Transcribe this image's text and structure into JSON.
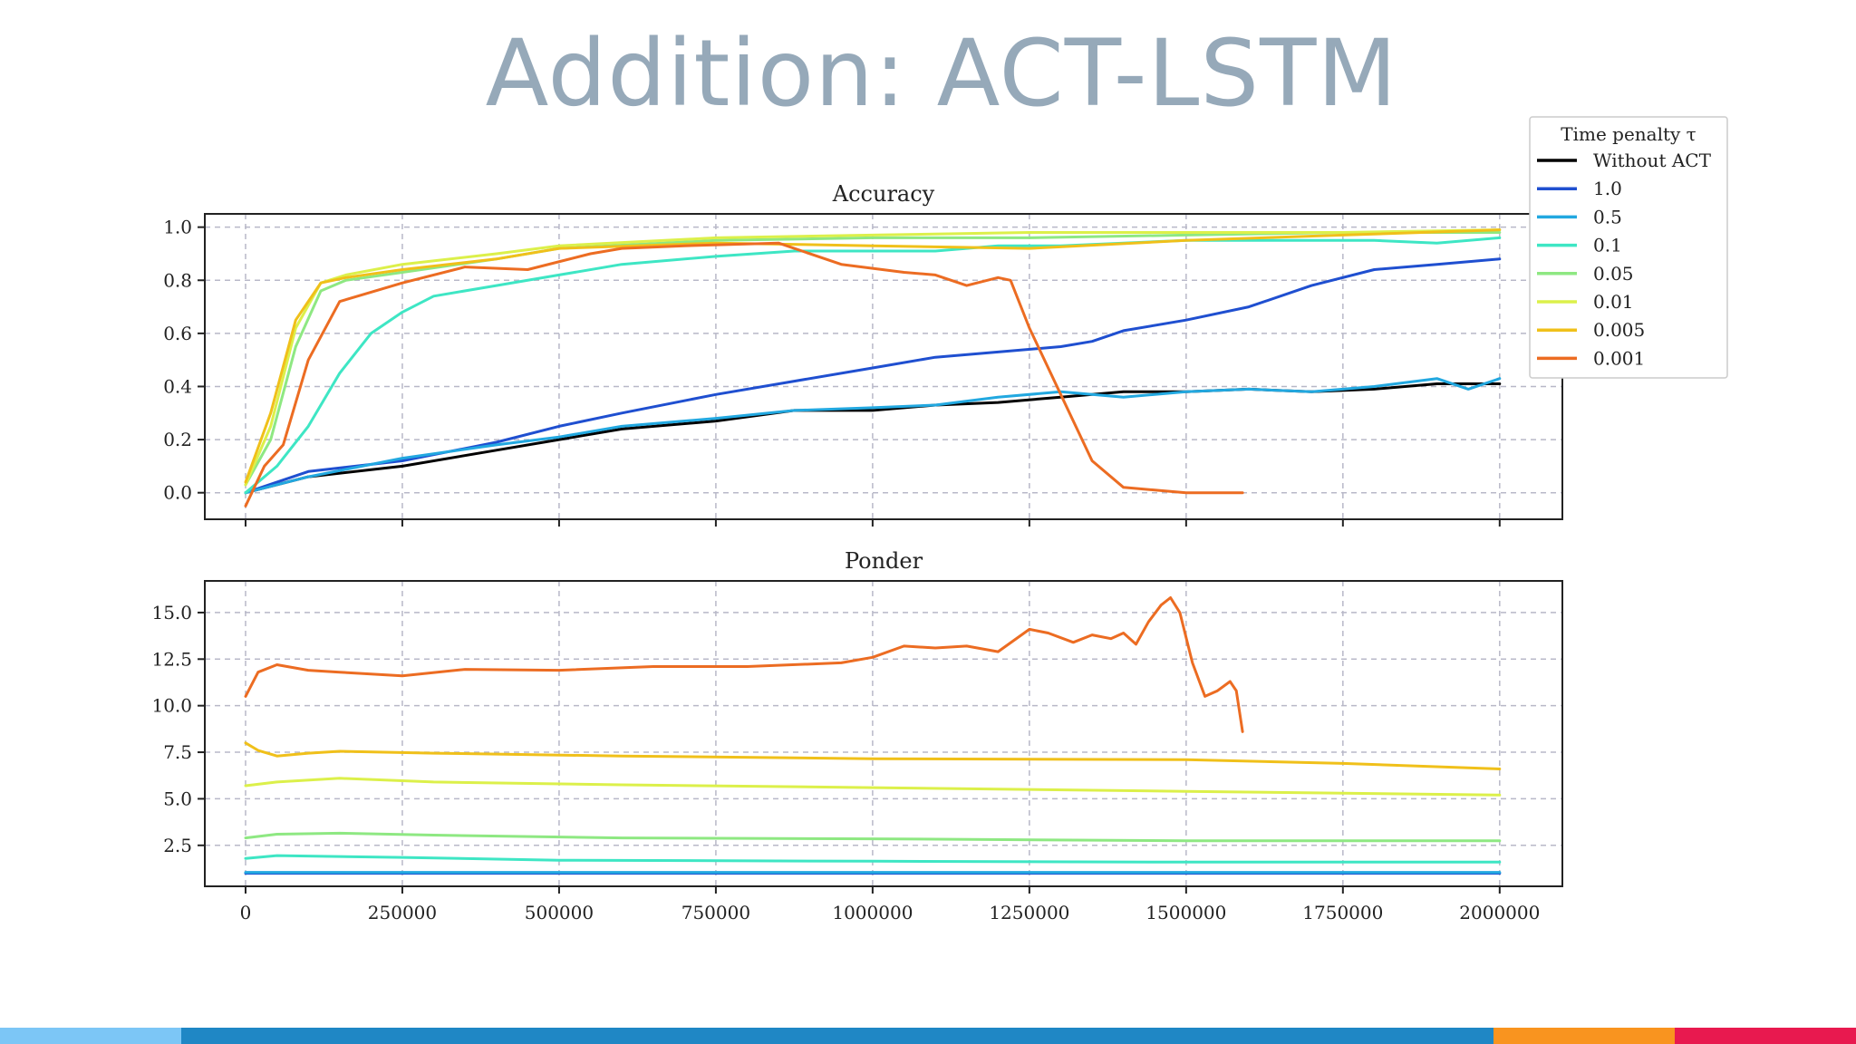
{
  "slide": {
    "title": "Addition: ACT-LSTM"
  },
  "legend": {
    "title": "Time penalty τ"
  },
  "colors": {
    "bar": [
      "#7cc6f6",
      "#1f87c5",
      "#f9941f",
      "#e8194f"
    ]
  },
  "chart_data": [
    {
      "type": "line",
      "title": "Accuracy",
      "xlabel": "",
      "ylabel": "",
      "xlim": [
        -65000,
        2100000
      ],
      "ylim": [
        -0.1,
        1.05
      ],
      "yticks": [
        0.0,
        0.2,
        0.4,
        0.6,
        0.8,
        1.0
      ],
      "ytick_labels": [
        "0.0",
        "0.2",
        "0.4",
        "0.6",
        "0.8",
        "1.0"
      ],
      "xticks": [
        0,
        250000,
        500000,
        750000,
        1000000,
        1250000,
        1500000,
        1750000,
        2000000
      ],
      "grid": true,
      "series": [
        {
          "name": "Without ACT",
          "color": "#000000",
          "x": [
            0,
            100000,
            250000,
            400000,
            500000,
            600000,
            750000,
            875000,
            1000000,
            1100000,
            1200000,
            1300000,
            1400000,
            1500000,
            1600000,
            1700000,
            1800000,
            1900000,
            2000000
          ],
          "y": [
            0.0,
            0.06,
            0.1,
            0.16,
            0.2,
            0.24,
            0.27,
            0.31,
            0.31,
            0.33,
            0.34,
            0.36,
            0.38,
            0.38,
            0.39,
            0.38,
            0.39,
            0.41,
            0.41
          ]
        },
        {
          "name": "1.0",
          "color": "#1f4fd0",
          "x": [
            0,
            100000,
            250000,
            400000,
            500000,
            600000,
            750000,
            875000,
            1000000,
            1100000,
            1200000,
            1300000,
            1350000,
            1400000,
            1500000,
            1600000,
            1700000,
            1800000,
            1900000,
            2000000
          ],
          "y": [
            0.0,
            0.08,
            0.12,
            0.19,
            0.25,
            0.3,
            0.37,
            0.42,
            0.47,
            0.51,
            0.53,
            0.55,
            0.57,
            0.61,
            0.65,
            0.7,
            0.78,
            0.84,
            0.86,
            0.88
          ]
        },
        {
          "name": "0.5",
          "color": "#22a8e0",
          "x": [
            0,
            100000,
            250000,
            400000,
            500000,
            600000,
            750000,
            875000,
            1000000,
            1100000,
            1200000,
            1300000,
            1400000,
            1500000,
            1600000,
            1700000,
            1800000,
            1900000,
            1950000,
            2000000
          ],
          "y": [
            0.0,
            0.06,
            0.13,
            0.18,
            0.21,
            0.25,
            0.28,
            0.31,
            0.32,
            0.33,
            0.36,
            0.38,
            0.36,
            0.38,
            0.39,
            0.38,
            0.4,
            0.43,
            0.39,
            0.43
          ]
        },
        {
          "name": "0.1",
          "color": "#3ee6c4",
          "x": [
            0,
            50000,
            100000,
            150000,
            200000,
            250000,
            300000,
            400000,
            500000,
            600000,
            750000,
            875000,
            1000000,
            1100000,
            1200000,
            1300000,
            1400000,
            1500000,
            1600000,
            1700000,
            1800000,
            1900000,
            2000000
          ],
          "y": [
            0.0,
            0.1,
            0.25,
            0.45,
            0.6,
            0.68,
            0.74,
            0.78,
            0.82,
            0.86,
            0.89,
            0.91,
            0.91,
            0.91,
            0.93,
            0.93,
            0.94,
            0.95,
            0.95,
            0.95,
            0.95,
            0.94,
            0.96
          ]
        },
        {
          "name": "0.05",
          "color": "#8ee882",
          "x": [
            0,
            40000,
            80000,
            120000,
            160000,
            250000,
            400000,
            500000,
            750000,
            1000000,
            1250000,
            1500000,
            1750000,
            2000000
          ],
          "y": [
            0.03,
            0.2,
            0.55,
            0.76,
            0.8,
            0.83,
            0.88,
            0.92,
            0.95,
            0.96,
            0.96,
            0.97,
            0.98,
            0.98
          ]
        },
        {
          "name": "0.01",
          "color": "#dcf04a",
          "x": [
            0,
            40000,
            80000,
            120000,
            160000,
            250000,
            400000,
            500000,
            750000,
            1000000,
            1250000,
            1500000,
            1750000,
            2000000
          ],
          "y": [
            0.03,
            0.25,
            0.62,
            0.79,
            0.82,
            0.86,
            0.9,
            0.93,
            0.96,
            0.97,
            0.98,
            0.98,
            0.98,
            0.99
          ]
        },
        {
          "name": "0.005",
          "color": "#f0c01a",
          "x": [
            0,
            40000,
            80000,
            120000,
            160000,
            250000,
            400000,
            500000,
            750000,
            1000000,
            1250000,
            1500000,
            1750000,
            2000000
          ],
          "y": [
            0.04,
            0.3,
            0.65,
            0.79,
            0.81,
            0.84,
            0.88,
            0.92,
            0.94,
            0.93,
            0.92,
            0.95,
            0.97,
            0.99
          ]
        },
        {
          "name": "0.001",
          "color": "#ec6c22",
          "x": [
            0,
            30000,
            60000,
            100000,
            150000,
            250000,
            350000,
            450000,
            550000,
            600000,
            700000,
            850000,
            950000,
            1050000,
            1100000,
            1150000,
            1200000,
            1220000,
            1250000,
            1300000,
            1350000,
            1400000,
            1450000,
            1500000,
            1590000
          ],
          "y": [
            -0.05,
            0.1,
            0.18,
            0.5,
            0.72,
            0.79,
            0.85,
            0.84,
            0.9,
            0.92,
            0.93,
            0.94,
            0.86,
            0.83,
            0.82,
            0.78,
            0.81,
            0.8,
            0.62,
            0.37,
            0.12,
            0.02,
            0.01,
            0.0,
            0.0
          ]
        }
      ]
    },
    {
      "type": "line",
      "title": "Ponder",
      "xlabel": "",
      "ylabel": "",
      "xlim": [
        -65000,
        2100000
      ],
      "ylim": [
        0.3,
        16.7
      ],
      "yticks": [
        2.5,
        5.0,
        7.5,
        10.0,
        12.5,
        15.0
      ],
      "ytick_labels": [
        "2.5",
        "5.0",
        "7.5",
        "10.0",
        "12.5",
        "15.0"
      ],
      "xticks": [
        0,
        250000,
        500000,
        750000,
        1000000,
        1250000,
        1500000,
        1750000,
        2000000
      ],
      "xtick_labels": [
        "0",
        "250000",
        "500000",
        "750000",
        "1000000",
        "1250000",
        "1500000",
        "1750000",
        "2000000"
      ],
      "grid": true,
      "series": [
        {
          "name": "Without ACT",
          "color": "#000000",
          "x": [],
          "y": []
        },
        {
          "name": "1.0",
          "color": "#1f4fd0",
          "x": [
            0,
            2000000
          ],
          "y": [
            1.0,
            1.0
          ]
        },
        {
          "name": "0.5",
          "color": "#22a8e0",
          "x": [
            0,
            2000000
          ],
          "y": [
            1.05,
            1.05
          ]
        },
        {
          "name": "0.1",
          "color": "#3ee6c4",
          "x": [
            0,
            50000,
            250000,
            500000,
            1000000,
            1500000,
            2000000
          ],
          "y": [
            1.8,
            1.95,
            1.85,
            1.7,
            1.65,
            1.6,
            1.6
          ]
        },
        {
          "name": "0.05",
          "color": "#8ee882",
          "x": [
            0,
            50000,
            150000,
            300000,
            600000,
            1000000,
            1500000,
            2000000
          ],
          "y": [
            2.9,
            3.1,
            3.15,
            3.05,
            2.9,
            2.85,
            2.75,
            2.75
          ]
        },
        {
          "name": "0.01",
          "color": "#dcf04a",
          "x": [
            0,
            50000,
            150000,
            300000,
            600000,
            1000000,
            1500000,
            2000000
          ],
          "y": [
            5.7,
            5.9,
            6.1,
            5.9,
            5.75,
            5.6,
            5.4,
            5.2
          ]
        },
        {
          "name": "0.005",
          "color": "#f0c01a",
          "x": [
            0,
            20000,
            50000,
            100000,
            150000,
            300000,
            600000,
            1000000,
            1500000,
            1750000,
            2000000
          ],
          "y": [
            8.0,
            7.6,
            7.3,
            7.45,
            7.55,
            7.45,
            7.3,
            7.15,
            7.1,
            6.9,
            6.6
          ]
        },
        {
          "name": "0.001",
          "color": "#ec6c22",
          "x": [
            0,
            20000,
            50000,
            100000,
            150000,
            250000,
            350000,
            500000,
            650000,
            800000,
            950000,
            1000000,
            1050000,
            1100000,
            1150000,
            1200000,
            1250000,
            1280000,
            1320000,
            1350000,
            1380000,
            1400000,
            1420000,
            1440000,
            1460000,
            1475000,
            1490000,
            1510000,
            1530000,
            1550000,
            1570000,
            1580000,
            1590000
          ],
          "y": [
            10.5,
            11.8,
            12.2,
            11.9,
            11.8,
            11.6,
            11.95,
            11.9,
            12.1,
            12.1,
            12.3,
            12.6,
            13.2,
            13.1,
            13.2,
            12.9,
            14.1,
            13.9,
            13.4,
            13.8,
            13.6,
            13.9,
            13.3,
            14.5,
            15.4,
            15.8,
            15.0,
            12.3,
            10.5,
            10.8,
            11.3,
            10.8,
            8.6
          ]
        }
      ]
    }
  ]
}
